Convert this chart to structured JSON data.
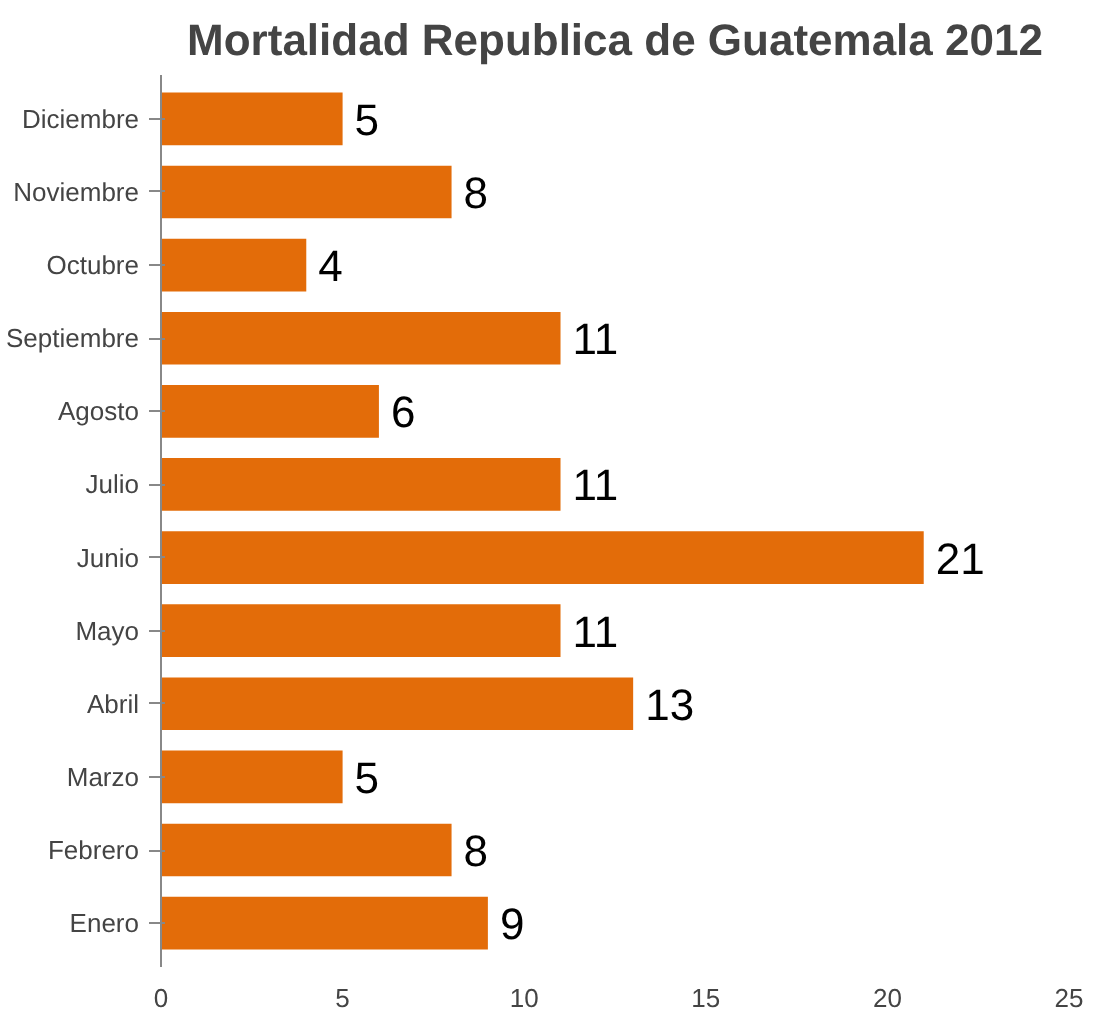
{
  "chart_data": {
    "type": "bar",
    "orientation": "horizontal",
    "title": "Mortalidad Republica de Guatemala 2012",
    "categories": [
      "Diciembre",
      "Noviembre",
      "Octubre",
      "Septiembre",
      "Agosto",
      "Julio",
      "Junio",
      "Mayo",
      "Abril",
      "Marzo",
      "Febrero",
      "Enero"
    ],
    "values": [
      5,
      8,
      4,
      11,
      6,
      11,
      21,
      11,
      13,
      5,
      8,
      9
    ],
    "color": "#e36c09",
    "xlim": [
      0,
      25
    ],
    "xticks": [
      0,
      5,
      10,
      15,
      20,
      25
    ],
    "grid": false,
    "data_labels": true
  }
}
